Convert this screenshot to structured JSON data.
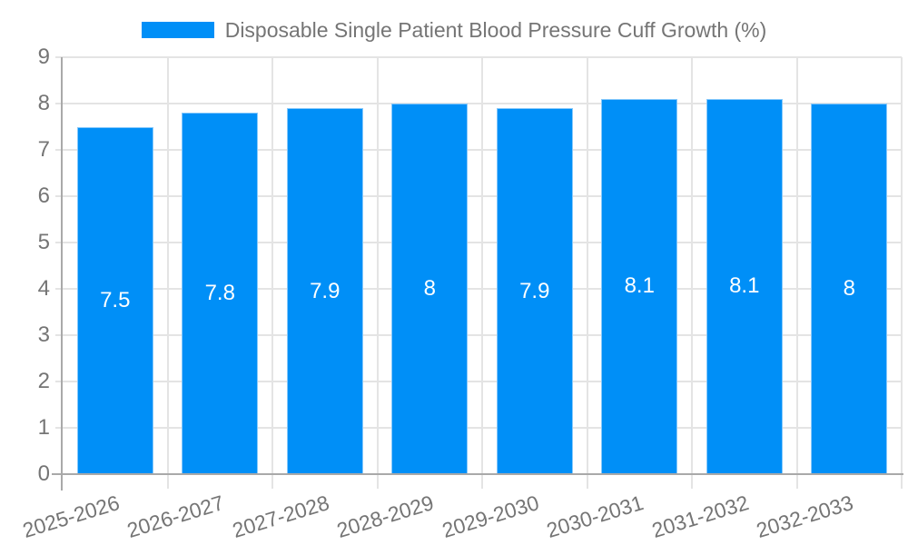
{
  "chart_data": {
    "type": "bar",
    "title": "Disposable Single Patient Blood Pressure Cuff Growth (%)",
    "legend_position": "top",
    "categories": [
      "2025-2026",
      "2026-2027",
      "2027-2028",
      "2028-2029",
      "2029-2030",
      "2030-2031",
      "2031-2032",
      "2032-2033"
    ],
    "values": [
      7.5,
      7.8,
      7.9,
      8,
      7.9,
      8.1,
      8.1,
      8
    ],
    "value_labels": [
      "7.5",
      "7.8",
      "7.9",
      "8",
      "7.9",
      "8.1",
      "8.1",
      "8"
    ],
    "xlabel": "",
    "ylabel": "",
    "ylim": [
      0,
      9
    ],
    "y_ticks": [
      0,
      1,
      2,
      3,
      4,
      5,
      6,
      7,
      8,
      9
    ],
    "grid": true,
    "colors": {
      "bar_fill": "#008ff7",
      "bar_border": "#87c9fb",
      "bar_label": "#ffffff",
      "axis_text": "#757575",
      "grid_line": "#e4e4e4",
      "axis_line": "#a9a9a9"
    }
  }
}
